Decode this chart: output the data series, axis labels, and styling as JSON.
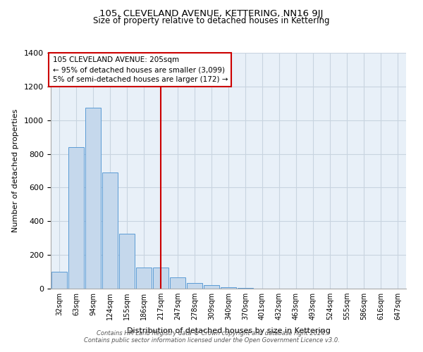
{
  "title": "105, CLEVELAND AVENUE, KETTERING, NN16 9JJ",
  "subtitle": "Size of property relative to detached houses in Kettering",
  "xlabel": "Distribution of detached houses by size in Kettering",
  "ylabel": "Number of detached properties",
  "bar_categories": [
    "32sqm",
    "63sqm",
    "94sqm",
    "124sqm",
    "155sqm",
    "186sqm",
    "217sqm",
    "247sqm",
    "278sqm",
    "309sqm",
    "340sqm",
    "370sqm",
    "401sqm",
    "432sqm",
    "463sqm",
    "493sqm",
    "524sqm",
    "555sqm",
    "586sqm",
    "616sqm",
    "647sqm"
  ],
  "bar_heights": [
    100,
    840,
    1075,
    690,
    325,
    125,
    125,
    65,
    35,
    20,
    10,
    5,
    0,
    0,
    0,
    0,
    0,
    0,
    0,
    0,
    0
  ],
  "bar_color": "#c5d8ec",
  "bar_edgecolor": "#5b9bd5",
  "vline_x": 6.5,
  "vline_color": "#cc0000",
  "ylim": [
    0,
    1400
  ],
  "yticks": [
    0,
    200,
    400,
    600,
    800,
    1000,
    1200,
    1400
  ],
  "annotation_title": "105 CLEVELAND AVENUE: 205sqm",
  "annotation_line1": "← 95% of detached houses are smaller (3,099)",
  "annotation_line2": "5% of semi-detached houses are larger (172) →",
  "annotation_box_color": "#cc0000",
  "grid_color": "#c8d4e0",
  "bg_color": "#e8f0f8",
  "footer1": "Contains HM Land Registry data © Crown copyright and database right 2024.",
  "footer2": "Contains public sector information licensed under the Open Government Licence v3.0."
}
